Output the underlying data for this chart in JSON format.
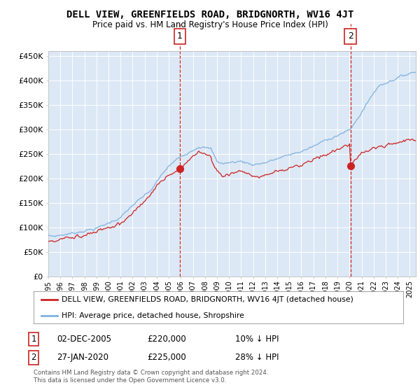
{
  "title": "DELL VIEW, GREENFIELDS ROAD, BRIDGNORTH, WV16 4JT",
  "subtitle": "Price paid vs. HM Land Registry's House Price Index (HPI)",
  "bg_color": "#ffffff",
  "plot_bg_color": "#dce8f5",
  "ylabel_ticks": [
    "£0",
    "£50K",
    "£100K",
    "£150K",
    "£200K",
    "£250K",
    "£300K",
    "£350K",
    "£400K",
    "£450K"
  ],
  "ytick_values": [
    0,
    50000,
    100000,
    150000,
    200000,
    250000,
    300000,
    350000,
    400000,
    450000
  ],
  "ylim": [
    0,
    460000
  ],
  "xstart_year": 1995,
  "xend_year": 2025,
  "hpi_color": "#7fb2e0",
  "price_color": "#cc2222",
  "sale1_year": 2005.92,
  "sale1_price": 220000,
  "sale2_year": 2020.08,
  "sale2_price": 225000,
  "legend_label1": "  DELL VIEW, GREENFIELDS ROAD, BRIDGNORTH, WV16 4JT (detached house)",
  "legend_label2": "  HPI: Average price, detached house, Shropshire",
  "annotation1_label": "1",
  "annotation1_date": "02-DEC-2005",
  "annotation1_price": "£220,000",
  "annotation1_hpi": "10% ↓ HPI",
  "annotation2_label": "2",
  "annotation2_date": "27-JAN-2020",
  "annotation2_price": "£225,000",
  "annotation2_hpi": "28% ↓ HPI",
  "footer": "Contains HM Land Registry data © Crown copyright and database right 2024.\nThis data is licensed under the Open Government Licence v3.0."
}
